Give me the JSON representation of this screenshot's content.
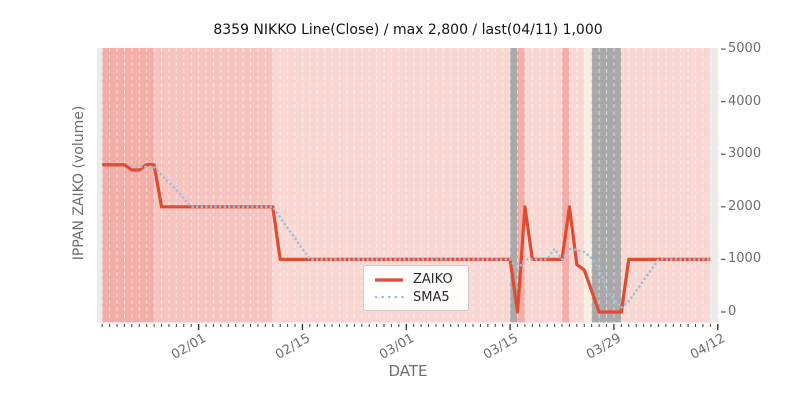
{
  "chart_data": {
    "type": "line",
    "title": "8359 NIKKO Line(Close) / max 2,800 / last(04/11) 1,000",
    "xlabel": "DATE",
    "ylabel": "IPPAN ZAIKO (volume)",
    "x_tick_labels": [
      "02/01",
      "02/15",
      "03/01",
      "03/15",
      "03/29",
      "04/12"
    ],
    "y_tick_labels": [
      "0",
      "1000",
      "2000",
      "3000",
      "4000",
      "5000"
    ],
    "y_tick_values": [
      0,
      1000,
      2000,
      3000,
      4000,
      5000
    ],
    "xlim_days_from_01_18": [
      0.3,
      84.1
    ],
    "ylim": [
      -200,
      5020
    ],
    "grid": "vertical-daily-white-dashed",
    "legend": {
      "position": "bottom-center",
      "entries": [
        "ZAIKO",
        "SMA5"
      ]
    },
    "series": [
      {
        "name": "ZAIKO",
        "style": "solid",
        "color": "#e14b32",
        "points": [
          [
            "01/19",
            2800
          ],
          [
            "01/20",
            2800
          ],
          [
            "01/21",
            2800
          ],
          [
            "01/22",
            2800
          ],
          [
            "01/23",
            2700
          ],
          [
            "01/24",
            2700
          ],
          [
            "01/25",
            2800
          ],
          [
            "01/26",
            2800
          ],
          [
            "01/27",
            2000
          ],
          [
            "01/28",
            2000
          ],
          [
            "01/29",
            2000
          ],
          [
            "01/30",
            2000
          ],
          [
            "01/31",
            2000
          ],
          [
            "02/01",
            2000
          ],
          [
            "02/02",
            2000
          ],
          [
            "02/03",
            2000
          ],
          [
            "02/04",
            2000
          ],
          [
            "02/05",
            2000
          ],
          [
            "02/06",
            2000
          ],
          [
            "02/07",
            2000
          ],
          [
            "02/08",
            2000
          ],
          [
            "02/09",
            2000
          ],
          [
            "02/10",
            2000
          ],
          [
            "02/11",
            2000
          ],
          [
            "02/12",
            1000
          ],
          [
            "02/13",
            1000
          ],
          [
            "02/14",
            1000
          ],
          [
            "02/15",
            1000
          ],
          [
            "02/16",
            1000
          ],
          [
            "02/17",
            1000
          ],
          [
            "02/18",
            1000
          ],
          [
            "02/19",
            1000
          ],
          [
            "02/20",
            1000
          ],
          [
            "02/21",
            1000
          ],
          [
            "02/22",
            1000
          ],
          [
            "02/23",
            1000
          ],
          [
            "02/24",
            1000
          ],
          [
            "02/25",
            1000
          ],
          [
            "02/26",
            1000
          ],
          [
            "02/27",
            1000
          ],
          [
            "02/28",
            1000
          ],
          [
            "03/01",
            1000
          ],
          [
            "03/02",
            1000
          ],
          [
            "03/03",
            1000
          ],
          [
            "03/04",
            1000
          ],
          [
            "03/05",
            1000
          ],
          [
            "03/06",
            1000
          ],
          [
            "03/07",
            1000
          ],
          [
            "03/08",
            1000
          ],
          [
            "03/09",
            1000
          ],
          [
            "03/10",
            1000
          ],
          [
            "03/11",
            1000
          ],
          [
            "03/12",
            1000
          ],
          [
            "03/13",
            1000
          ],
          [
            "03/14",
            1000
          ],
          [
            "03/15",
            1000
          ],
          [
            "03/16",
            0
          ],
          [
            "03/17",
            2000
          ],
          [
            "03/18",
            1000
          ],
          [
            "03/19",
            1000
          ],
          [
            "03/20",
            1000
          ],
          [
            "03/21",
            1000
          ],
          [
            "03/22",
            1000
          ],
          [
            "03/23",
            2000
          ],
          [
            "03/24",
            900
          ],
          [
            "03/25",
            800
          ],
          [
            "03/26",
            400
          ],
          [
            "03/27",
            0
          ],
          [
            "03/28",
            0
          ],
          [
            "03/29",
            0
          ],
          [
            "03/30",
            0
          ],
          [
            "03/31",
            1000
          ],
          [
            "04/01",
            1000
          ],
          [
            "04/02",
            1000
          ],
          [
            "04/03",
            1000
          ],
          [
            "04/04",
            1000
          ],
          [
            "04/05",
            1000
          ],
          [
            "04/06",
            1000
          ],
          [
            "04/07",
            1000
          ],
          [
            "04/08",
            1000
          ],
          [
            "04/09",
            1000
          ],
          [
            "04/10",
            1000
          ],
          [
            "04/11",
            1000
          ]
        ]
      },
      {
        "name": "SMA5",
        "style": "dotted",
        "color": "#9fbedb",
        "derived": "simple moving average of ZAIKO",
        "window": 5
      }
    ],
    "background_bands": [
      {
        "from": "01/19",
        "to": "01/26",
        "color": "salmon"
      },
      {
        "from": "01/26",
        "to": "02/11",
        "color": "pink"
      },
      {
        "from": "02/11",
        "to": "03/15",
        "color": "lightpink"
      },
      {
        "from": "03/15",
        "to": "03/16",
        "color": "gray"
      },
      {
        "from": "03/16",
        "to": "03/17",
        "color": "salmon"
      },
      {
        "from": "03/17",
        "to": "03/22",
        "color": "lightpink"
      },
      {
        "from": "03/22",
        "to": "03/23",
        "color": "salmon"
      },
      {
        "from": "03/23",
        "to": "03/25",
        "color": "lightpink"
      },
      {
        "from": "03/25",
        "to": "03/26",
        "color": "cream"
      },
      {
        "from": "03/26",
        "to": "03/30",
        "color": "gray"
      },
      {
        "from": "03/30",
        "to": "04/11",
        "color": "lightpink"
      }
    ],
    "band_colors": {
      "salmon": "#f4aea8",
      "pink": "#f7c5bf",
      "lightpink": "#f9d7d2",
      "cream": "#f6eee2",
      "gray": "#a9a9a9",
      "edge": "#ebebeb"
    }
  }
}
